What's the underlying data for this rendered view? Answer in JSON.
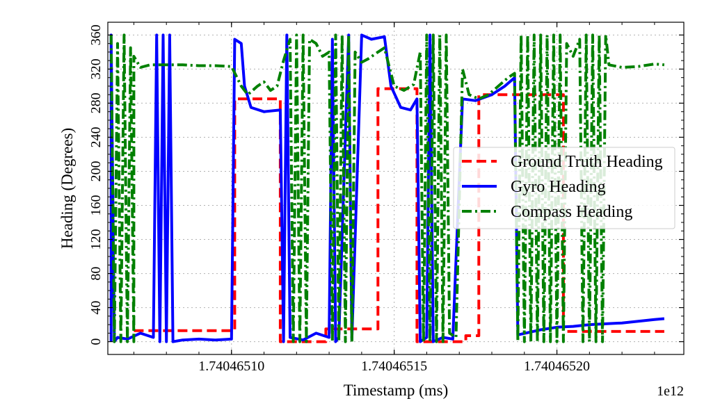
{
  "chart_data": {
    "type": "line",
    "xlabel": "Timestamp (ms)",
    "ylabel": "Heading (Degrees)",
    "offset_label": "1e12",
    "xlim": [
      1.740465062,
      1.740465239
    ],
    "ylim": [
      -15,
      375
    ],
    "x_ticks": [
      1.7404651,
      1.74046515,
      1.7404652
    ],
    "x_tick_labels": [
      "1.74046510",
      "1.74046515",
      "1.74046520"
    ],
    "y_ticks": [
      0,
      40,
      80,
      120,
      160,
      200,
      240,
      280,
      320,
      360
    ],
    "y_tick_labels": [
      "0",
      "40",
      "80",
      "120",
      "160",
      "200",
      "240",
      "280",
      "320",
      "360"
    ],
    "grid": true,
    "legend_position": "center-right",
    "series": [
      {
        "name": "Ground Truth Heading",
        "color": "#ff0000",
        "style": "dashed",
        "points": [
          [
            1.74046507,
            13
          ],
          [
            1.740465101,
            13
          ],
          [
            1.740465101,
            285
          ],
          [
            1.740465115,
            285
          ],
          [
            1.740465115,
            0
          ],
          [
            1.740465129,
            0
          ],
          [
            1.740465129,
            15
          ],
          [
            1.740465145,
            15
          ],
          [
            1.740465145,
            297
          ],
          [
            1.740465157,
            297
          ],
          [
            1.740465157,
            0
          ],
          [
            1.740465172,
            0
          ],
          [
            1.740465172,
            7
          ],
          [
            1.740465176,
            7
          ],
          [
            1.740465176,
            290
          ],
          [
            1.740465202,
            290
          ],
          [
            1.740465202,
            12
          ],
          [
            1.740465233,
            12
          ]
        ]
      },
      {
        "name": "Gyro Heading",
        "color": "#0000ff",
        "style": "solid",
        "points": [
          [
            1.740465063,
            0
          ],
          [
            1.740465063,
            360
          ],
          [
            1.740465064,
            0
          ],
          [
            1.740465065,
            5
          ],
          [
            1.740465068,
            3
          ],
          [
            1.740465072,
            10
          ],
          [
            1.740465076,
            5
          ],
          [
            1.740465077,
            360
          ],
          [
            1.740465078,
            0
          ],
          [
            1.740465079,
            360
          ],
          [
            1.74046508,
            0
          ],
          [
            1.740465081,
            360
          ],
          [
            1.740465082,
            0
          ],
          [
            1.740465085,
            2
          ],
          [
            1.74046509,
            3
          ],
          [
            1.740465095,
            2
          ],
          [
            1.7404651,
            3
          ],
          [
            1.740465101,
            355
          ],
          [
            1.740465103,
            350
          ],
          [
            1.740465104,
            300
          ],
          [
            1.740465106,
            275
          ],
          [
            1.74046511,
            270
          ],
          [
            1.740465115,
            272
          ],
          [
            1.740465116,
            0
          ],
          [
            1.740465117,
            360
          ],
          [
            1.740465118,
            5
          ],
          [
            1.740465122,
            2
          ],
          [
            1.740465126,
            10
          ],
          [
            1.74046513,
            5
          ],
          [
            1.740465131,
            355
          ],
          [
            1.740465132,
            0
          ],
          [
            1.740465133,
            5
          ],
          [
            1.740465136,
            360
          ],
          [
            1.740465137,
            2
          ],
          [
            1.74046514,
            360
          ],
          [
            1.740465143,
            355
          ],
          [
            1.740465147,
            358
          ],
          [
            1.740465149,
            300
          ],
          [
            1.740465152,
            275
          ],
          [
            1.740465155,
            272
          ],
          [
            1.740465157,
            285
          ],
          [
            1.740465158,
            0
          ],
          [
            1.74046516,
            5
          ],
          [
            1.740465161,
            360
          ],
          [
            1.740465162,
            0
          ],
          [
            1.740465165,
            5
          ],
          [
            1.740465168,
            3
          ],
          [
            1.740465171,
            285
          ],
          [
            1.740465175,
            283
          ],
          [
            1.74046518,
            290
          ],
          [
            1.740465184,
            300
          ],
          [
            1.740465187,
            310
          ],
          [
            1.740465188,
            8
          ],
          [
            1.740465195,
            14
          ],
          [
            1.7404652,
            17
          ],
          [
            1.740465205,
            18
          ],
          [
            1.74046521,
            20
          ],
          [
            1.740465215,
            21
          ],
          [
            1.74046522,
            22
          ],
          [
            1.740465225,
            24
          ],
          [
            1.74046523,
            26
          ],
          [
            1.740465233,
            27
          ]
        ]
      },
      {
        "name": "Compass Heading",
        "color": "#008000",
        "style": "dashdot",
        "points": [
          [
            1.740465063,
            360
          ],
          [
            1.740465064,
            0
          ],
          [
            1.740465065,
            350
          ],
          [
            1.740465066,
            0
          ],
          [
            1.740465067,
            360
          ],
          [
            1.740465068,
            0
          ],
          [
            1.740465069,
            345
          ],
          [
            1.74046507,
            0
          ],
          [
            1.74046507,
            335
          ],
          [
            1.740465072,
            322
          ],
          [
            1.740465075,
            325
          ],
          [
            1.74046508,
            325
          ],
          [
            1.740465085,
            325
          ],
          [
            1.74046509,
            324
          ],
          [
            1.740465095,
            324
          ],
          [
            1.7404651,
            323
          ],
          [
            1.740465103,
            300
          ],
          [
            1.740465105,
            290
          ],
          [
            1.740465108,
            300
          ],
          [
            1.74046511,
            305
          ],
          [
            1.740465112,
            295
          ],
          [
            1.740465114,
            300
          ],
          [
            1.740465116,
            330
          ],
          [
            1.740465118,
            355
          ],
          [
            1.740465119,
            0
          ],
          [
            1.74046512,
            360
          ],
          [
            1.740465121,
            0
          ],
          [
            1.740465122,
            360
          ],
          [
            1.740465123,
            0
          ],
          [
            1.740465124,
            355
          ],
          [
            1.740465126,
            350
          ],
          [
            1.740465128,
            335
          ],
          [
            1.74046513,
            340
          ],
          [
            1.740465131,
            0
          ],
          [
            1.740465132,
            360
          ],
          [
            1.740465133,
            0
          ],
          [
            1.740465134,
            360
          ],
          [
            1.740465135,
            0
          ],
          [
            1.740465136,
            360
          ],
          [
            1.740465137,
            0
          ],
          [
            1.740465138,
            340
          ],
          [
            1.74046514,
            328
          ],
          [
            1.740465142,
            332
          ],
          [
            1.740465145,
            340
          ],
          [
            1.740465147,
            345
          ],
          [
            1.74046515,
            300
          ],
          [
            1.740465153,
            295
          ],
          [
            1.740465156,
            302
          ],
          [
            1.740465158,
            340
          ],
          [
            1.740465159,
            0
          ],
          [
            1.74046516,
            360
          ],
          [
            1.740465161,
            0
          ],
          [
            1.740465162,
            360
          ],
          [
            1.740465163,
            0
          ],
          [
            1.740465164,
            360
          ],
          [
            1.740465165,
            0
          ],
          [
            1.740465166,
            360
          ],
          [
            1.740465167,
            10
          ],
          [
            1.740465169,
            5
          ],
          [
            1.740465171,
            320
          ],
          [
            1.740465173,
            290
          ],
          [
            1.740465176,
            285
          ],
          [
            1.740465179,
            290
          ],
          [
            1.740465182,
            300
          ],
          [
            1.740465185,
            310
          ],
          [
            1.740465187,
            315
          ],
          [
            1.740465188,
            0
          ],
          [
            1.740465189,
            360
          ],
          [
            1.74046519,
            0
          ],
          [
            1.740465191,
            360
          ],
          [
            1.740465192,
            0
          ],
          [
            1.740465193,
            360
          ],
          [
            1.740465194,
            0
          ],
          [
            1.740465195,
            360
          ],
          [
            1.740465196,
            0
          ],
          [
            1.740465197,
            360
          ],
          [
            1.740465198,
            0
          ],
          [
            1.740465199,
            360
          ],
          [
            1.7404652,
            0
          ],
          [
            1.740465201,
            360
          ],
          [
            1.740465202,
            0
          ],
          [
            1.740465203,
            350
          ],
          [
            1.740465205,
            335
          ],
          [
            1.740465207,
            355
          ],
          [
            1.740465208,
            0
          ],
          [
            1.740465209,
            360
          ],
          [
            1.74046521,
            0
          ],
          [
            1.740465211,
            360
          ],
          [
            1.740465212,
            0
          ],
          [
            1.740465213,
            360
          ],
          [
            1.740465214,
            0
          ],
          [
            1.740465215,
            360
          ],
          [
            1.740465216,
            325
          ],
          [
            1.74046522,
            322
          ],
          [
            1.740465225,
            323
          ],
          [
            1.74046523,
            326
          ],
          [
            1.740465233,
            325
          ]
        ]
      }
    ]
  }
}
